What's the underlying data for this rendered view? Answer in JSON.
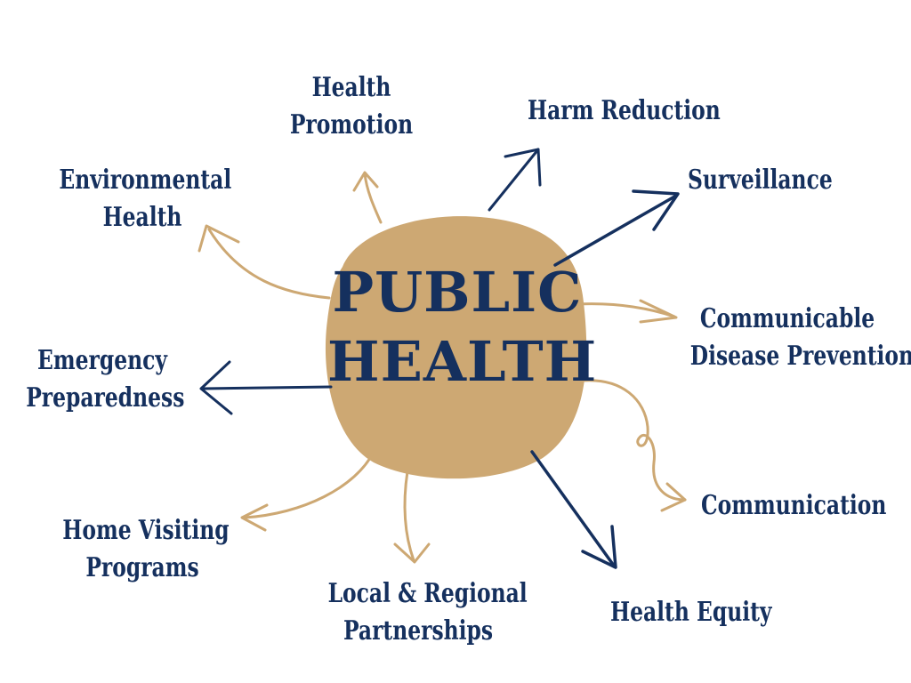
{
  "center": {
    "line1": "PUBLIC",
    "line2": "HEALTH"
  },
  "nodes": {
    "health_promotion": [
      "Health",
      "Promotion"
    ],
    "harm_reduction": [
      "Harm Reduction"
    ],
    "environmental_health": [
      "Environmental",
      "Health"
    ],
    "surveillance": [
      "Surveillance"
    ],
    "communicable_disease_prevention": [
      "Communicable",
      "Disease Prevention"
    ],
    "emergency_preparedness": [
      "Emergency",
      "Preparedness"
    ],
    "communication": [
      "Communication"
    ],
    "home_visiting_programs": [
      "Home Visiting",
      "Programs"
    ],
    "local_regional_partnerships": [
      "Local & Regional",
      "Partnerships"
    ],
    "health_equity": [
      "Health Equity"
    ]
  },
  "colors": {
    "navy": "#15305e",
    "tan": "#cda873",
    "background": "#ffffff"
  }
}
